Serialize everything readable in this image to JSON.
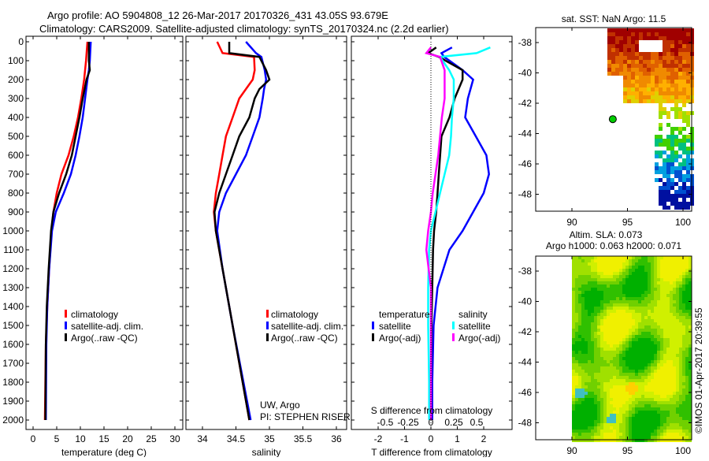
{
  "title_line1": "Argo profile: AO 5904808_12 26-Mar-2017 20170326_431 43.05S 93.679E",
  "title_line2": "Climatology: CARS2009. Satellite-adjusted climatology: synTS_20170324.nc (2.2d earlier)",
  "credit": "©IMOS 01-Apr-2017 20:39:55",
  "colors": {
    "clim": "#ff0000",
    "sat": "#0000ff",
    "argo": "#000000",
    "sal_sat": "#00ffff",
    "sal_argo": "#ff00ff",
    "marker": "#00cc00"
  },
  "chart_data": [
    {
      "type": "line",
      "id": "temperature",
      "xlabel": "temperature (deg C)",
      "xlim": [
        -1.5,
        31.5
      ],
      "xticks": [
        0,
        5,
        10,
        15,
        20,
        25,
        30
      ],
      "ylim": [
        2050,
        0
      ],
      "yticks": [
        0,
        100,
        200,
        300,
        400,
        500,
        600,
        700,
        800,
        900,
        1000,
        1100,
        1200,
        1300,
        1400,
        1500,
        1600,
        1700,
        1800,
        1900,
        2000
      ],
      "legend": [
        "climatology",
        "satellite-adj. clim.",
        "Argo(..raw -QC)"
      ],
      "depth": [
        0,
        100,
        150,
        200,
        300,
        400,
        500,
        600,
        700,
        800,
        900,
        1000,
        1200,
        1400,
        1600,
        2000
      ],
      "series": [
        {
          "name": "climatology",
          "values": [
            11.5,
            11.2,
            11.0,
            10.8,
            10.2,
            9.5,
            8.6,
            7.5,
            6.0,
            5.0,
            4.3,
            3.9,
            3.4,
            3.0,
            2.7,
            2.5
          ]
        },
        {
          "name": "satellite-adj. clim.",
          "values": [
            12.2,
            12.0,
            11.8,
            11.5,
            11.0,
            10.5,
            9.8,
            9.0,
            8.0,
            6.5,
            4.8,
            4.0,
            3.4,
            3.0,
            2.8,
            2.7
          ]
        },
        {
          "name": "Argo(..raw -QC)",
          "values": [
            11.8,
            11.8,
            12.0,
            11.3,
            10.5,
            9.8,
            9.0,
            8.2,
            7.0,
            5.5,
            4.3,
            3.8,
            3.3,
            2.9,
            2.7,
            2.6
          ]
        }
      ]
    },
    {
      "type": "line",
      "id": "salinity",
      "xlabel": "salinity",
      "xlim": [
        33.75,
        36.1
      ],
      "xticks": [
        34,
        34.5,
        35,
        35.5,
        36
      ],
      "ylim": [
        2050,
        0
      ],
      "legend": [
        "climatology",
        "satellite-adj. clim.",
        "Argo(..raw -QC)"
      ],
      "annotation": [
        "UW, Argo",
        "PI: STEPHEN RISER"
      ],
      "depth": [
        0,
        60,
        80,
        150,
        200,
        250,
        300,
        400,
        500,
        600,
        700,
        800,
        900,
        1000,
        1200,
        1500,
        2000
      ],
      "series": [
        {
          "name": "climatology",
          "values": [
            34.22,
            34.3,
            34.77,
            34.78,
            34.75,
            34.65,
            34.55,
            34.45,
            34.35,
            34.3,
            34.25,
            34.2,
            34.17,
            34.2,
            34.3,
            34.45,
            34.7
          ]
        },
        {
          "name": "satellite-adj. clim.",
          "values": [
            34.65,
            34.8,
            34.88,
            34.93,
            34.95,
            34.92,
            34.9,
            34.85,
            34.75,
            34.65,
            34.5,
            34.35,
            34.25,
            34.22,
            34.3,
            34.45,
            34.72
          ]
        },
        {
          "name": "Argo(..raw -QC)",
          "values": [
            34.4,
            34.4,
            34.85,
            34.95,
            35.0,
            34.85,
            34.78,
            34.7,
            34.55,
            34.45,
            34.35,
            34.25,
            34.18,
            34.2,
            34.3,
            34.45,
            34.7
          ]
        }
      ]
    },
    {
      "type": "line",
      "id": "difference",
      "xlabel": "T difference from climatology",
      "xlabel_top": "S difference from climatology",
      "xlim": [
        -3,
        3
      ],
      "xticks": [
        -2,
        -1,
        0,
        1,
        2
      ],
      "s_xticks": [
        -0.5,
        -0.25,
        0,
        0.25,
        0.5
      ],
      "ylim": [
        2050,
        0
      ],
      "legend_temperature": {
        "title": "temperature",
        "items": [
          "satellite",
          "Argo(-adj)"
        ]
      },
      "legend_salinity": {
        "title": "salinity",
        "items": [
          "satellite",
          "Argo(-adj)"
        ]
      },
      "depth": [
        30,
        60,
        80,
        150,
        200,
        300,
        400,
        500,
        600,
        700,
        800,
        900,
        1000,
        1100,
        1300,
        1500,
        1800,
        2000
      ],
      "series": [
        {
          "name": "T satellite",
          "values": [
            0.8,
            0.4,
            0.5,
            1.2,
            1.6,
            1.4,
            1.3,
            1.7,
            2.1,
            2.2,
            2.0,
            1.6,
            1.2,
            0.7,
            0.25,
            0.1,
            0.05,
            0.05
          ]
        },
        {
          "name": "T Argo(-adj)",
          "values": [
            0.2,
            -0.1,
            0.3,
            1.2,
            1.2,
            0.9,
            0.7,
            0.4,
            0.35,
            0.3,
            0.25,
            0.2,
            0.12,
            0.08,
            0.05,
            0.02,
            0.0,
            0.0
          ]
        },
        {
          "name": "S satellite",
          "values": [
            0.65,
            0.5,
            0.1,
            0.2,
            0.25,
            0.25,
            0.23,
            0.22,
            0.2,
            0.15,
            0.1,
            0.05,
            0.0,
            -0.02,
            -0.03,
            -0.03,
            -0.02,
            -0.02
          ]
        },
        {
          "name": "S Argo(-adj)",
          "values": [
            0.0,
            -0.05,
            0.1,
            0.15,
            0.15,
            0.15,
            0.12,
            0.1,
            0.08,
            0.05,
            0.02,
            0.0,
            -0.03,
            -0.05,
            0.0,
            0.0,
            0.0,
            0.0
          ]
        }
      ]
    },
    {
      "type": "heatmap",
      "id": "sst-map",
      "title": "sat. SST: NaN Argo: 11.5",
      "xlim": [
        86.8,
        100.3
      ],
      "ylim": [
        -49,
        -37
      ],
      "xticks": [
        90,
        95,
        100
      ],
      "yticks": [
        -38,
        -40,
        -42,
        -44,
        -46,
        -48
      ],
      "argo_position": [
        93.679,
        -43.05
      ]
    },
    {
      "type": "heatmap",
      "id": "sla-map",
      "title_line1": "Altim. SLA: 0.073",
      "title_line2": "Argo h1000: 0.063 h2000: 0.071",
      "xlim": [
        86.8,
        100.3
      ],
      "ylim": [
        -49,
        -37
      ],
      "xticks": [
        90,
        95,
        100
      ],
      "yticks": [
        -38,
        -40,
        -42,
        -44,
        -46,
        -48
      ]
    }
  ]
}
